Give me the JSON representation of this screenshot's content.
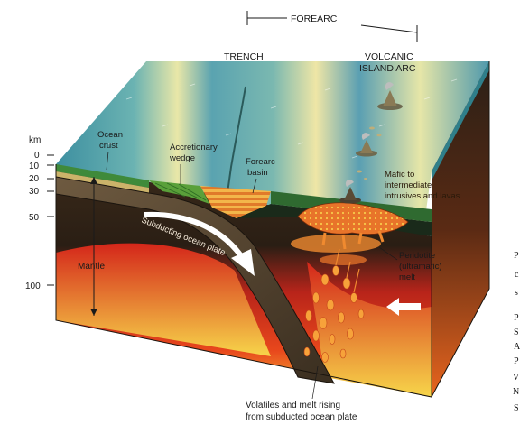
{
  "labels": {
    "forearc": "FOREARC",
    "trench": "TRENCH",
    "volcanic_line1": "VOLCANIC",
    "volcanic_line2": "ISLAND ARC",
    "km": "km",
    "ocean_crust_line1": "Ocean",
    "ocean_crust_line2": "crust",
    "accretionary_line1": "Accretionary",
    "accretionary_line2": "wedge",
    "forearc_basin_line1": "Forearc",
    "forearc_basin_line2": "basin",
    "mafic_line1": "Mafic to",
    "mafic_line2": "intermediate",
    "mafic_line3": "intrusives and lavas",
    "subducting_plate": "Subducting ocean plate",
    "mantle": "Mantle",
    "peridotite_line1": "Peridotite",
    "peridotite_line2": "(ultramafic)",
    "peridotite_line3": "melt",
    "volatiles_line1": "Volatiles and melt rising",
    "volatiles_line2": "from subducted ocean plate"
  },
  "depth_ticks": [
    "0",
    "10",
    "20",
    "30",
    "50",
    "100"
  ],
  "edge_fragments": [
    "P",
    "c",
    "s",
    "P",
    "S",
    "A",
    "P",
    "V",
    "N",
    "S"
  ],
  "colors": {
    "sea": "#5fa8b8",
    "sea_light": "#e8e9a0",
    "crust_green": "#3f8a3a",
    "mantle_dark": "#2f2418",
    "mantle_hot": "#e0301a",
    "magma": "#f08a30",
    "yellow": "#f7d54a"
  }
}
